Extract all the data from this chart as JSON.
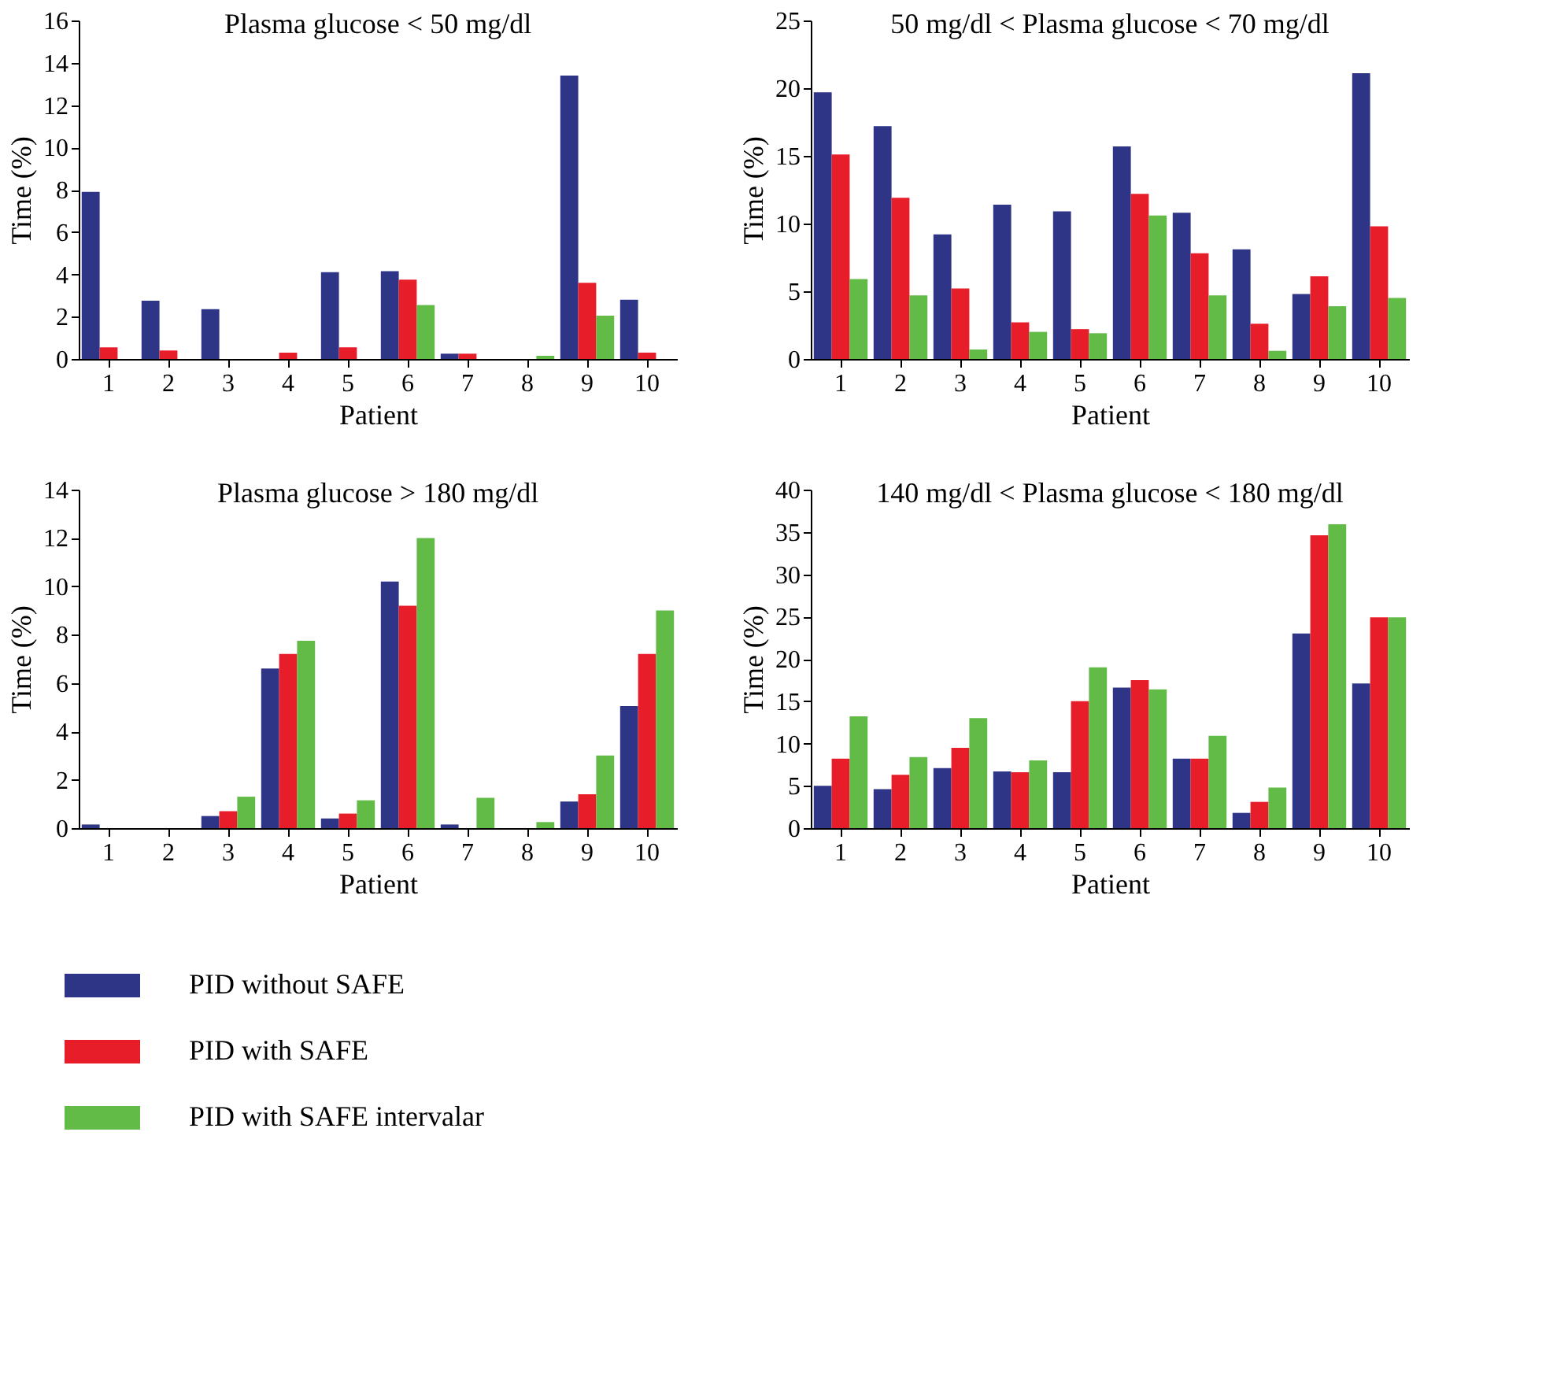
{
  "chart_data": [
    {
      "type": "bar",
      "title": "Plasma glucose < 50 mg/dl",
      "xlabel": "Patient",
      "ylabel": "Time (%)",
      "categories": [
        "1",
        "2",
        "3",
        "4",
        "5",
        "6",
        "7",
        "8",
        "9",
        "10"
      ],
      "ylim": [
        0,
        16
      ],
      "yticks": [
        0,
        2,
        4,
        6,
        8,
        10,
        12,
        14,
        16
      ],
      "grid": false,
      "legend": false,
      "series": [
        {
          "color": "#2e3586",
          "values": [
            7.9,
            2.75,
            2.35,
            0,
            4.1,
            4.15,
            0.25,
            0,
            13.4,
            2.8
          ]
        },
        {
          "color": "#e81d2a",
          "values": [
            0.55,
            0.4,
            0,
            0.3,
            0.55,
            3.75,
            0.25,
            0,
            3.6,
            0.3
          ]
        },
        {
          "color": "#63bb47",
          "values": [
            0,
            0,
            0,
            0,
            0,
            2.55,
            0,
            0.15,
            2.05,
            0
          ]
        }
      ]
    },
    {
      "type": "bar",
      "title": "50 mg/dl < Plasma glucose < 70 mg/dl",
      "xlabel": "Patient",
      "ylabel": "Time (%)",
      "categories": [
        "1",
        "2",
        "3",
        "4",
        "5",
        "6",
        "7",
        "8",
        "9",
        "10"
      ],
      "ylim": [
        0,
        25
      ],
      "yticks": [
        0,
        5,
        10,
        15,
        20,
        25
      ],
      "grid": false,
      "legend": false,
      "series": [
        {
          "color": "#2e3586",
          "values": [
            19.7,
            17.2,
            9.2,
            11.4,
            10.9,
            15.7,
            10.8,
            8.1,
            4.8,
            21.1
          ]
        },
        {
          "color": "#e81d2a",
          "values": [
            15.1,
            11.9,
            5.2,
            2.7,
            2.2,
            12.2,
            7.8,
            2.6,
            6.1,
            9.8
          ]
        },
        {
          "color": "#63bb47",
          "values": [
            5.9,
            4.7,
            0.7,
            2.0,
            1.9,
            10.6,
            4.7,
            0.6,
            3.9,
            4.5
          ]
        }
      ]
    },
    {
      "type": "bar",
      "title": "Plasma glucose > 180 mg/dl",
      "xlabel": "Patient",
      "ylabel": "Time (%)",
      "categories": [
        "1",
        "2",
        "3",
        "4",
        "5",
        "6",
        "7",
        "8",
        "9",
        "10"
      ],
      "ylim": [
        0,
        14
      ],
      "yticks": [
        0,
        2,
        4,
        6,
        8,
        10,
        12,
        14
      ],
      "grid": false,
      "legend": "bottom",
      "series": [
        {
          "name": "PID without SAFE",
          "color": "#2e3586",
          "values": [
            0.15,
            0,
            0.5,
            6.6,
            0.4,
            10.2,
            0.15,
            0,
            1.1,
            5.05
          ]
        },
        {
          "name": "PID with SAFE",
          "color": "#e81d2a",
          "values": [
            0,
            0,
            0.7,
            7.2,
            0.6,
            9.2,
            0,
            0,
            1.4,
            7.2
          ]
        },
        {
          "name": "PID with SAFE intervalar",
          "color": "#63bb47",
          "values": [
            0,
            0,
            1.3,
            7.75,
            1.15,
            12.0,
            1.25,
            0.25,
            3.0,
            9.0
          ]
        }
      ]
    },
    {
      "type": "bar",
      "title": "140 mg/dl < Plasma glucose < 180 mg/dl",
      "xlabel": "Patient",
      "ylabel": "Time (%)",
      "categories": [
        "1",
        "2",
        "3",
        "4",
        "5",
        "6",
        "7",
        "8",
        "9",
        "10"
      ],
      "ylim": [
        0,
        40
      ],
      "yticks": [
        0,
        5,
        10,
        15,
        20,
        25,
        30,
        35,
        40
      ],
      "grid": false,
      "legend": false,
      "series": [
        {
          "color": "#2e3586",
          "values": [
            5.0,
            4.6,
            7.1,
            6.7,
            6.6,
            16.6,
            8.2,
            1.8,
            23.0,
            17.1
          ]
        },
        {
          "color": "#e81d2a",
          "values": [
            8.2,
            6.3,
            9.5,
            6.6,
            15.0,
            17.5,
            8.2,
            3.1,
            34.6,
            24.9
          ]
        },
        {
          "color": "#63bb47",
          "values": [
            13.2,
            8.4,
            13.0,
            8.0,
            19.0,
            16.4,
            10.9,
            4.8,
            35.9,
            24.9
          ]
        }
      ]
    }
  ]
}
